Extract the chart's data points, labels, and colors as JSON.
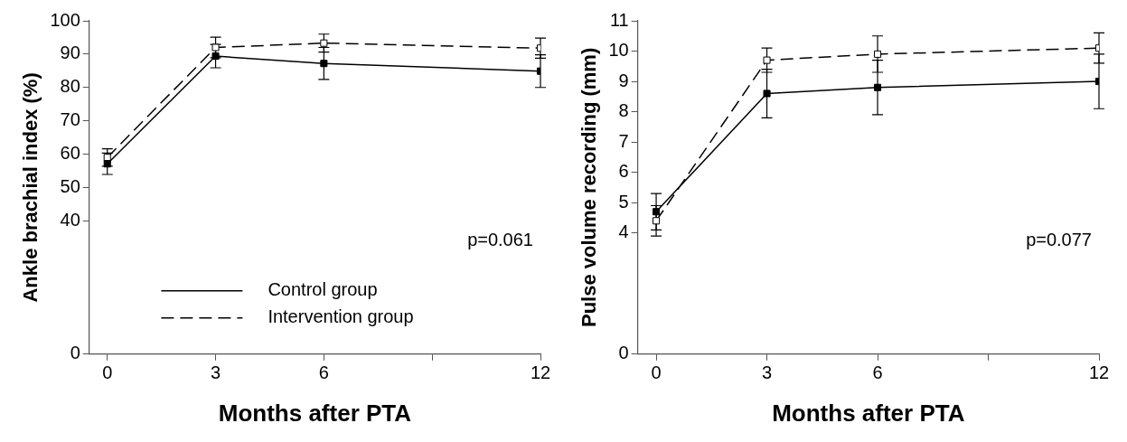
{
  "chart_data": [
    {
      "type": "line",
      "xlabel": "Months after PTA",
      "ylabel": "Ankle brachial index (%)",
      "x": [
        0,
        3,
        6,
        12
      ],
      "xlim": [
        -0.5,
        12
      ],
      "xticks": [
        0,
        3,
        6,
        {
          "value": 9,
          "label": null
        },
        12
      ],
      "ylim": [
        0,
        100
      ],
      "yticks": [
        0,
        40,
        50,
        60,
        70,
        80,
        90,
        100
      ],
      "grid": false,
      "legend": "bottom",
      "marker": "square",
      "annotations": [
        "p=0.061"
      ],
      "series": [
        {
          "name": "Control group",
          "color": "#000000",
          "line_style": "solid",
          "values": [
            57.1,
            89.4,
            87.2,
            84.9
          ],
          "errors": [
            3.2,
            3.5,
            4.8,
            4.9
          ]
        },
        {
          "name": "Intervention group",
          "color": "#000000",
          "colors": [
            "#ffffff",
            "#ffffff",
            "#ffffff",
            "#ffffff"
          ],
          "line_style": "dashed",
          "values": [
            59.0,
            92.0,
            93.3,
            91.8
          ],
          "errors": [
            2.6,
            3.1,
            2.7,
            3.0
          ]
        }
      ]
    },
    {
      "type": "line",
      "xlabel": "Months after PTA",
      "ylabel": "Pulse volume recording (mm)",
      "x": [
        0,
        3,
        6,
        12
      ],
      "xlim": [
        -0.5,
        12
      ],
      "xticks": [
        0,
        3,
        6,
        {
          "value": 9,
          "label": null
        },
        12
      ],
      "ylim": [
        0,
        11
      ],
      "yticks": [
        0,
        4,
        5,
        6,
        7,
        8,
        9,
        10,
        11
      ],
      "grid": false,
      "legend": false,
      "marker": "square",
      "annotations": [
        "p=0.077"
      ],
      "series": [
        {
          "color": "#000000",
          "line_style": "solid",
          "values": [
            4.7,
            8.6,
            8.8,
            9.0
          ],
          "errors": [
            0.6,
            0.8,
            0.9,
            0.9
          ]
        },
        {
          "color": "#000000",
          "colors": [
            "#ffffff",
            "#ffffff",
            "#ffffff",
            "#ffffff"
          ],
          "line_style": "dashed",
          "values": [
            4.4,
            9.7,
            9.9,
            10.1
          ],
          "errors": [
            0.5,
            0.4,
            0.6,
            0.5
          ]
        }
      ]
    }
  ]
}
